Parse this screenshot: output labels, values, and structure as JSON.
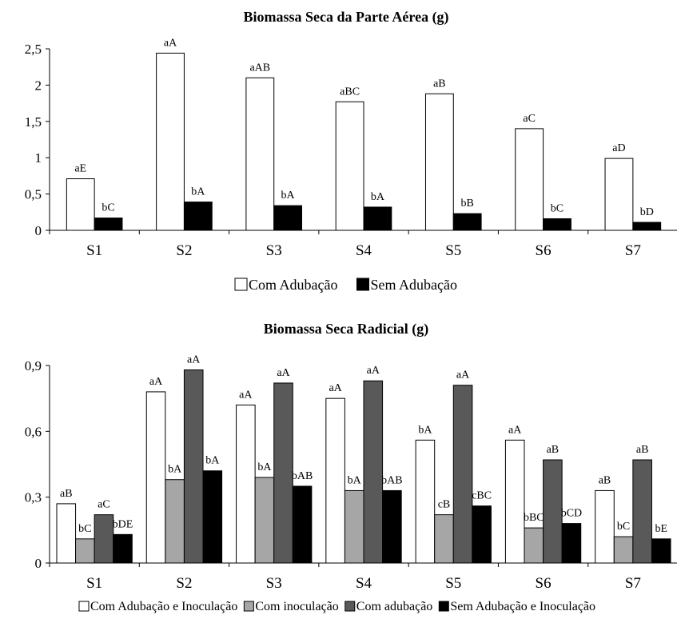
{
  "chart_data": [
    {
      "type": "bar",
      "title": "Biomassa Seca da Parte Aérea (g)",
      "categories": [
        "S1",
        "S2",
        "S3",
        "S4",
        "S5",
        "S6",
        "S7"
      ],
      "ylim": [
        0,
        2.5
      ],
      "yticks": [
        "0",
        "0,5",
        "1",
        "1,5",
        "2",
        "2,5"
      ],
      "grid": false,
      "legend_position": "bottom",
      "series": [
        {
          "name": "Com Adubação",
          "color": "#ffffff",
          "values": [
            0.71,
            2.44,
            2.1,
            1.77,
            1.88,
            1.4,
            0.99
          ],
          "labels": [
            "aE",
            "aA",
            "aAB",
            "aBC",
            "aB",
            "aC",
            "aD"
          ]
        },
        {
          "name": "Sem Adubação",
          "color": "#000000",
          "values": [
            0.17,
            0.39,
            0.34,
            0.32,
            0.23,
            0.16,
            0.11
          ],
          "labels": [
            "bC",
            "bA",
            "bA",
            "bA",
            "bB",
            "bC",
            "bD"
          ]
        }
      ]
    },
    {
      "type": "bar",
      "title": "Biomassa Seca Radicial (g)",
      "categories": [
        "S1",
        "S2",
        "S3",
        "S4",
        "S5",
        "S6",
        "S7"
      ],
      "ylim": [
        0,
        0.9
      ],
      "yticks": [
        "0",
        "0,3",
        "0,6",
        "0,9"
      ],
      "grid": false,
      "legend_position": "bottom",
      "series": [
        {
          "name": "Com Adubação e Inoculação",
          "color": "#ffffff",
          "values": [
            0.27,
            0.78,
            0.72,
            0.75,
            0.56,
            0.56,
            0.33
          ],
          "labels": [
            "aB",
            "aA",
            "aA",
            "aA",
            "bA",
            "aA",
            "aB"
          ]
        },
        {
          "name": "Com inoculação",
          "color": "#a6a6a6",
          "values": [
            0.11,
            0.38,
            0.39,
            0.33,
            0.22,
            0.16,
            0.12
          ],
          "labels": [
            "bC",
            "bA",
            "bA",
            "bA",
            "cB",
            "bBC",
            "bC"
          ]
        },
        {
          "name": "Com adubação",
          "color": "#595959",
          "values": [
            0.22,
            0.88,
            0.82,
            0.83,
            0.81,
            0.47,
            0.47
          ],
          "labels": [
            "aC",
            "aA",
            "aA",
            "aA",
            "aA",
            "aB",
            "aB"
          ]
        },
        {
          "name": "Sem Adubação e Inoculação",
          "color": "#000000",
          "values": [
            0.13,
            0.42,
            0.35,
            0.33,
            0.26,
            0.18,
            0.11
          ],
          "labels": [
            "bDE",
            "bA",
            "bAB",
            "bAB",
            "cBC",
            "bCD",
            "bE"
          ]
        }
      ]
    }
  ]
}
